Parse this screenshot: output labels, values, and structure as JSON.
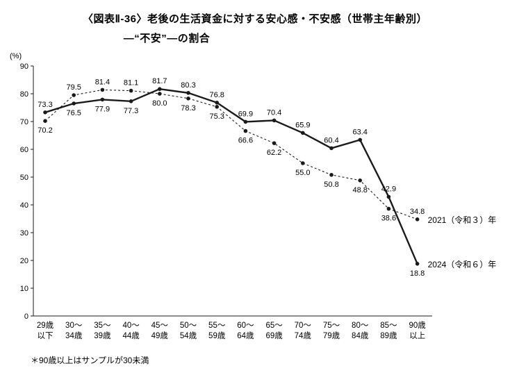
{
  "title_line1": "〈図表Ⅱ-36〉老後の生活資金に対する安心感・不安感（世帯主年齢別）",
  "title_line2": "―“不安”―の割合",
  "footnote": "＊90歳以上はサンプルが30未満",
  "colors": {
    "ink": "#1a1a1a",
    "background": "#ffffff"
  },
  "chart_data": {
    "type": "line",
    "title": "〈図表Ⅱ-36〉老後の生活資金に対する安心感・不安感（世帯主年齢別）―“不安”―の割合",
    "ylabel": "(%)",
    "xlabel": "",
    "ylim": [
      0,
      90
    ],
    "ytick_step": 10,
    "grid": false,
    "legend_position": "right-of-line-end",
    "categories": [
      "29歳以下",
      "30～34歳",
      "35～39歳",
      "40～44歳",
      "45～49歳",
      "50～54歳",
      "55～59歳",
      "60～64歳",
      "65～69歳",
      "70～74歳",
      "75～79歳",
      "80～84歳",
      "85～89歳",
      "90歳以上"
    ],
    "categories_2line": [
      [
        "29歳",
        "以下"
      ],
      [
        "30～",
        "34歳"
      ],
      [
        "35～",
        "39歳"
      ],
      [
        "40～",
        "44歳"
      ],
      [
        "45～",
        "49歳"
      ],
      [
        "50～",
        "54歳"
      ],
      [
        "55～",
        "59歳"
      ],
      [
        "60～",
        "64歳"
      ],
      [
        "65～",
        "69歳"
      ],
      [
        "70～",
        "74歳"
      ],
      [
        "75～",
        "79歳"
      ],
      [
        "80～",
        "84歳"
      ],
      [
        "85～",
        "89歳"
      ],
      [
        "90歳",
        "以上"
      ]
    ],
    "series": [
      {
        "name": "2021（令和３）年",
        "style": "dashed",
        "values": [
          70.2,
          79.5,
          81.4,
          81.1,
          80.0,
          78.3,
          75.3,
          66.6,
          62.2,
          55.0,
          50.8,
          48.8,
          38.6,
          34.8
        ]
      },
      {
        "name": "2024（令和６）年",
        "style": "solid",
        "values": [
          73.3,
          76.5,
          77.9,
          77.3,
          81.7,
          80.3,
          76.8,
          69.9,
          70.4,
          65.9,
          60.4,
          63.4,
          42.9,
          18.8
        ]
      }
    ]
  }
}
